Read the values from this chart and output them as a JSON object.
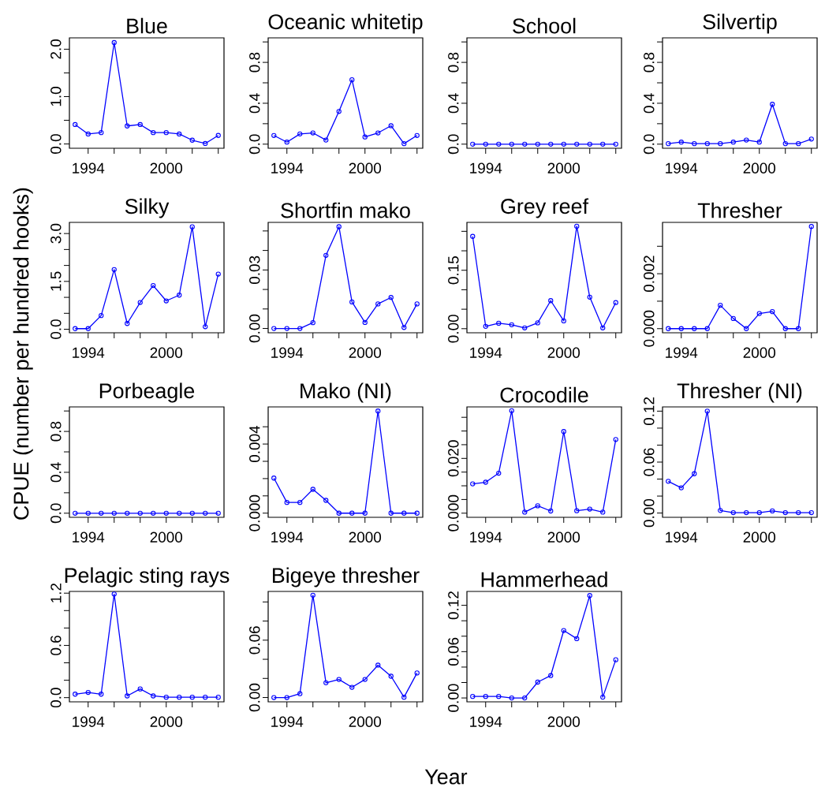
{
  "chart_data": [
    {
      "type": "line",
      "title": "Blue",
      "x": [
        1993,
        1994,
        1995,
        1996,
        1997,
        1998,
        1999,
        2000,
        2001,
        2002,
        2003,
        2004
      ],
      "values": [
        0.41,
        0.21,
        0.24,
        2.14,
        0.38,
        0.41,
        0.24,
        0.24,
        0.21,
        0.08,
        0.01,
        0.18
      ],
      "color": "#0000ff",
      "marker": "circle",
      "xlim": [
        1992.56,
        2004.44
      ],
      "xticks": [
        {
          "value": 1994,
          "label": "1994"
        },
        {
          "value": 1996,
          "label": null
        },
        {
          "value": 1998,
          "label": null
        },
        {
          "value": 2000,
          "label": "2000"
        },
        {
          "value": 2002,
          "label": null
        },
        {
          "value": 2004,
          "label": null
        }
      ],
      "ylim": [
        -0.09,
        2.24
      ],
      "yticks": [
        {
          "value": 0,
          "label": "0.0"
        },
        {
          "value": 0.5,
          "label": null
        },
        {
          "value": 1.0,
          "label": "1.0"
        },
        {
          "value": 1.5,
          "label": null
        },
        {
          "value": 2.0,
          "label": "2.0"
        }
      ]
    },
    {
      "type": "line",
      "title": "Oceanic whitetip",
      "x": [
        1993,
        1994,
        1995,
        1996,
        1997,
        1998,
        1999,
        2000,
        2001,
        2002,
        2003,
        2004
      ],
      "values": [
        0.085,
        0.02,
        0.1,
        0.11,
        0.04,
        0.32,
        0.63,
        0.07,
        0.11,
        0.18,
        0.005,
        0.085
      ],
      "color": "#0000ff",
      "marker": "circle",
      "xlim": [
        1992.56,
        2004.44
      ],
      "xticks": [
        {
          "value": 1994,
          "label": "1994"
        },
        {
          "value": 1996,
          "label": null
        },
        {
          "value": 1998,
          "label": null
        },
        {
          "value": 2000,
          "label": "2000"
        },
        {
          "value": 2002,
          "label": null
        },
        {
          "value": 2004,
          "label": null
        }
      ],
      "ylim": [
        -0.04,
        1.04
      ],
      "yticks": [
        {
          "value": 0,
          "label": "0.0"
        },
        {
          "value": 0.2,
          "label": null
        },
        {
          "value": 0.4,
          "label": "0.4"
        },
        {
          "value": 0.6,
          "label": null
        },
        {
          "value": 0.8,
          "label": "0.8"
        },
        {
          "value": 1.0,
          "label": null
        }
      ]
    },
    {
      "type": "line",
      "title": "School",
      "x": [
        1993,
        1994,
        1995,
        1996,
        1997,
        1998,
        1999,
        2000,
        2001,
        2002,
        2003,
        2004
      ],
      "values": [
        0,
        0,
        0,
        0,
        0,
        0,
        0,
        0,
        0,
        0,
        0,
        0
      ],
      "color": "#0000ff",
      "marker": "circle",
      "xlim": [
        1992.56,
        2004.44
      ],
      "xticks": [
        {
          "value": 1994,
          "label": "1994"
        },
        {
          "value": 1996,
          "label": null
        },
        {
          "value": 1998,
          "label": null
        },
        {
          "value": 2000,
          "label": "2000"
        },
        {
          "value": 2002,
          "label": null
        },
        {
          "value": 2004,
          "label": null
        }
      ],
      "ylim": [
        -0.04,
        1.04
      ],
      "yticks": [
        {
          "value": 0,
          "label": "0.0"
        },
        {
          "value": 0.2,
          "label": null
        },
        {
          "value": 0.4,
          "label": "0.4"
        },
        {
          "value": 0.6,
          "label": null
        },
        {
          "value": 0.8,
          "label": "0.8"
        },
        {
          "value": 1.0,
          "label": null
        }
      ]
    },
    {
      "type": "line",
      "title": "Silvertip",
      "x": [
        1993,
        1994,
        1995,
        1996,
        1997,
        1998,
        1999,
        2000,
        2001,
        2002,
        2003,
        2004
      ],
      "values": [
        0.005,
        0.02,
        0.005,
        0.005,
        0.005,
        0.02,
        0.04,
        0.02,
        0.39,
        0.005,
        0.005,
        0.05
      ],
      "color": "#0000ff",
      "marker": "circle",
      "xlim": [
        1992.56,
        2004.44
      ],
      "xticks": [
        {
          "value": 1994,
          "label": "1994"
        },
        {
          "value": 1996,
          "label": null
        },
        {
          "value": 1998,
          "label": null
        },
        {
          "value": 2000,
          "label": "2000"
        },
        {
          "value": 2002,
          "label": null
        },
        {
          "value": 2004,
          "label": null
        }
      ],
      "ylim": [
        -0.04,
        1.04
      ],
      "yticks": [
        {
          "value": 0,
          "label": "0.0"
        },
        {
          "value": 0.2,
          "label": null
        },
        {
          "value": 0.4,
          "label": "0.4"
        },
        {
          "value": 0.6,
          "label": null
        },
        {
          "value": 0.8,
          "label": "0.8"
        },
        {
          "value": 1.0,
          "label": null
        }
      ]
    },
    {
      "type": "line",
      "title": "Silky",
      "ylabel": "CPUE (number per hundred hooks)",
      "x": [
        1993,
        1994,
        1995,
        1996,
        1997,
        1998,
        1999,
        2000,
        2001,
        2002,
        2003,
        2004
      ],
      "values": [
        0.02,
        0.02,
        0.43,
        1.87,
        0.18,
        0.84,
        1.37,
        0.89,
        1.07,
        3.21,
        0.08,
        1.73
      ],
      "color": "#0000ff",
      "marker": "circle",
      "xlim": [
        1992.56,
        2004.44
      ],
      "xticks": [
        {
          "value": 1994,
          "label": "1994"
        },
        {
          "value": 1996,
          "label": null
        },
        {
          "value": 1998,
          "label": null
        },
        {
          "value": 2000,
          "label": "2000"
        },
        {
          "value": 2002,
          "label": null
        },
        {
          "value": 2004,
          "label": null
        }
      ],
      "ylim": [
        -0.11,
        3.35
      ],
      "yticks": [
        {
          "value": 0,
          "label": "0.0"
        },
        {
          "value": 0.5,
          "label": null
        },
        {
          "value": 1.0,
          "label": null
        },
        {
          "value": 1.5,
          "label": "1.5"
        },
        {
          "value": 2.0,
          "label": null
        },
        {
          "value": 2.5,
          "label": null
        },
        {
          "value": 3.0,
          "label": "3.0"
        }
      ]
    },
    {
      "type": "line",
      "title": "Shortfin mako",
      "x": [
        1993,
        1994,
        1995,
        1996,
        1997,
        1998,
        1999,
        2000,
        2001,
        2002,
        2003,
        2004
      ],
      "values": [
        0,
        0,
        0,
        0.003,
        0.0375,
        0.0522,
        0.0136,
        0.0031,
        0.0126,
        0.0159,
        0.0005,
        0.0126
      ],
      "color": "#0000ff",
      "marker": "circle",
      "xlim": [
        1992.56,
        2004.44
      ],
      "xticks": [
        {
          "value": 1994,
          "label": "1994"
        },
        {
          "value": 1996,
          "label": null
        },
        {
          "value": 1998,
          "label": null
        },
        {
          "value": 2000,
          "label": "2000"
        },
        {
          "value": 2002,
          "label": null
        },
        {
          "value": 2004,
          "label": null
        }
      ],
      "ylim": [
        -0.0022,
        0.0544
      ],
      "yticks": [
        {
          "value": 0,
          "label": "0.00"
        },
        {
          "value": 0.01,
          "label": null
        },
        {
          "value": 0.02,
          "label": null
        },
        {
          "value": 0.03,
          "label": "0.03"
        },
        {
          "value": 0.04,
          "label": null
        },
        {
          "value": 0.05,
          "label": null
        }
      ]
    },
    {
      "type": "line",
      "title": "Grey reef",
      "x": [
        1993,
        1994,
        1995,
        1996,
        1997,
        1998,
        1999,
        2000,
        2001,
        2002,
        2003,
        2004
      ],
      "values": [
        0.237,
        0.006,
        0.014,
        0.01,
        0.002,
        0.015,
        0.072,
        0.02,
        0.263,
        0.081,
        0.002,
        0.067
      ],
      "color": "#0000ff",
      "marker": "circle",
      "xlim": [
        1992.56,
        2004.44
      ],
      "xticks": [
        {
          "value": 1994,
          "label": "1994"
        },
        {
          "value": 1996,
          "label": null
        },
        {
          "value": 1998,
          "label": null
        },
        {
          "value": 2000,
          "label": "2000"
        },
        {
          "value": 2002,
          "label": null
        },
        {
          "value": 2004,
          "label": null
        }
      ],
      "ylim": [
        -0.0105,
        0.273
      ],
      "yticks": [
        {
          "value": 0,
          "label": "0.00"
        },
        {
          "value": 0.05,
          "label": null
        },
        {
          "value": 0.1,
          "label": null
        },
        {
          "value": 0.15,
          "label": "0.15"
        },
        {
          "value": 0.2,
          "label": null
        },
        {
          "value": 0.25,
          "label": null
        }
      ]
    },
    {
      "type": "line",
      "title": "Thresher",
      "x": [
        1993,
        1994,
        1995,
        1996,
        1997,
        1998,
        1999,
        2000,
        2001,
        2002,
        2003,
        2004
      ],
      "values": [
        0,
        0,
        0,
        0,
        0.00085,
        0.00037,
        0,
        0.00055,
        0.00062,
        0,
        0,
        0.00372
      ],
      "color": "#0000ff",
      "marker": "circle",
      "xlim": [
        1992.56,
        2004.44
      ],
      "xticks": [
        {
          "value": 1994,
          "label": "1994"
        },
        {
          "value": 1996,
          "label": null
        },
        {
          "value": 1998,
          "label": null
        },
        {
          "value": 2000,
          "label": "2000"
        },
        {
          "value": 2002,
          "label": null
        },
        {
          "value": 2004,
          "label": null
        }
      ],
      "ylim": [
        -0.00015,
        0.00387
      ],
      "yticks": [
        {
          "value": 0,
          "label": "0.000"
        },
        {
          "value": 0.001,
          "label": null
        },
        {
          "value": 0.002,
          "label": "0.002"
        },
        {
          "value": 0.003,
          "label": null
        }
      ]
    },
    {
      "type": "line",
      "title": "Porbeagle",
      "x": [
        1993,
        1994,
        1995,
        1996,
        1997,
        1998,
        1999,
        2000,
        2001,
        2002,
        2003,
        2004
      ],
      "values": [
        0,
        0,
        0,
        0,
        0,
        0,
        0,
        0,
        0,
        0,
        0,
        0
      ],
      "color": "#0000ff",
      "marker": "circle",
      "xlim": [
        1992.56,
        2004.44
      ],
      "xticks": [
        {
          "value": 1994,
          "label": "1994"
        },
        {
          "value": 1996,
          "label": null
        },
        {
          "value": 1998,
          "label": null
        },
        {
          "value": 2000,
          "label": "2000"
        },
        {
          "value": 2002,
          "label": null
        },
        {
          "value": 2004,
          "label": null
        }
      ],
      "ylim": [
        -0.04,
        1.04
      ],
      "yticks": [
        {
          "value": 0,
          "label": "0.0"
        },
        {
          "value": 0.2,
          "label": null
        },
        {
          "value": 0.4,
          "label": "0.4"
        },
        {
          "value": 0.6,
          "label": null
        },
        {
          "value": 0.8,
          "label": "0.8"
        },
        {
          "value": 1.0,
          "label": null
        }
      ]
    },
    {
      "type": "line",
      "title": "Mako (NI)",
      "x": [
        1993,
        1994,
        1995,
        1996,
        1997,
        1998,
        1999,
        2000,
        2001,
        2002,
        2003,
        2004
      ],
      "values": [
        0.00203,
        0.00062,
        0.00062,
        0.00138,
        0.00074,
        0,
        0,
        0,
        0.00591,
        0,
        0,
        0
      ],
      "color": "#0000ff",
      "marker": "circle",
      "xlim": [
        1992.56,
        2004.44
      ],
      "xticks": [
        {
          "value": 1994,
          "label": "1994"
        },
        {
          "value": 1996,
          "label": null
        },
        {
          "value": 1998,
          "label": null
        },
        {
          "value": 2000,
          "label": "2000"
        },
        {
          "value": 2002,
          "label": null
        },
        {
          "value": 2004,
          "label": null
        }
      ],
      "ylim": [
        -0.00024,
        0.00615
      ],
      "yticks": [
        {
          "value": 0,
          "label": "0.000"
        },
        {
          "value": 0.001,
          "label": null
        },
        {
          "value": 0.002,
          "label": null
        },
        {
          "value": 0.003,
          "label": null
        },
        {
          "value": 0.004,
          "label": "0.004"
        },
        {
          "value": 0.005,
          "label": null
        }
      ]
    },
    {
      "type": "line",
      "title": "Crocodile",
      "x": [
        1993,
        1994,
        1995,
        1996,
        1997,
        1998,
        1999,
        2000,
        2001,
        2002,
        2003,
        2004
      ],
      "values": [
        0.0107,
        0.0113,
        0.0146,
        0.0374,
        0.0004,
        0.0027,
        0.0008,
        0.0298,
        0.0009,
        0.0015,
        0.0004,
        0.0269
      ],
      "color": "#0000ff",
      "marker": "circle",
      "xlim": [
        1992.56,
        2004.44
      ],
      "xticks": [
        {
          "value": 1994,
          "label": "1994"
        },
        {
          "value": 1996,
          "label": null
        },
        {
          "value": 1998,
          "label": null
        },
        {
          "value": 2000,
          "label": "2000"
        },
        {
          "value": 2002,
          "label": null
        },
        {
          "value": 2004,
          "label": null
        }
      ],
      "ylim": [
        -0.0015,
        0.0388
      ],
      "yticks": [
        {
          "value": 0,
          "label": "0.000"
        },
        {
          "value": 0.005,
          "label": null
        },
        {
          "value": 0.01,
          "label": null
        },
        {
          "value": 0.015,
          "label": null
        },
        {
          "value": 0.02,
          "label": "0.020"
        },
        {
          "value": 0.025,
          "label": null
        },
        {
          "value": 0.03,
          "label": null
        },
        {
          "value": 0.035,
          "label": null
        }
      ]
    },
    {
      "type": "line",
      "title": "Thresher (NI)",
      "x": [
        1993,
        1994,
        1995,
        1996,
        1997,
        1998,
        1999,
        2000,
        2001,
        2002,
        2003,
        2004
      ],
      "values": [
        0.0374,
        0.0297,
        0.0463,
        0.12,
        0.003,
        0.0005,
        0.0005,
        0.0005,
        0.0025,
        0.0005,
        0.0005,
        0.0005
      ],
      "color": "#0000ff",
      "marker": "circle",
      "xlim": [
        1992.56,
        2004.44
      ],
      "xticks": [
        {
          "value": 1994,
          "label": "1994"
        },
        {
          "value": 1996,
          "label": null
        },
        {
          "value": 1998,
          "label": null
        },
        {
          "value": 2000,
          "label": "2000"
        },
        {
          "value": 2002,
          "label": null
        },
        {
          "value": 2004,
          "label": null
        }
      ],
      "ylim": [
        -0.005,
        0.125
      ],
      "yticks": [
        {
          "value": 0,
          "label": "0.00"
        },
        {
          "value": 0.02,
          "label": null
        },
        {
          "value": 0.04,
          "label": null
        },
        {
          "value": 0.06,
          "label": "0.06"
        },
        {
          "value": 0.08,
          "label": null
        },
        {
          "value": 0.1,
          "label": null
        },
        {
          "value": 0.12,
          "label": "0.12"
        }
      ]
    },
    {
      "type": "line",
      "title": "Pelagic sting rays",
      "x": [
        1993,
        1994,
        1995,
        1996,
        1997,
        1998,
        1999,
        2000,
        2001,
        2002,
        2003,
        2004
      ],
      "values": [
        0.04,
        0.06,
        0.04,
        1.19,
        0.02,
        0.1,
        0.02,
        0.005,
        0.005,
        0.005,
        0.005,
        0.005
      ],
      "color": "#0000ff",
      "marker": "circle",
      "xlim": [
        1992.56,
        2004.44
      ],
      "xticks": [
        {
          "value": 1994,
          "label": "1994"
        },
        {
          "value": 1996,
          "label": null
        },
        {
          "value": 1998,
          "label": null
        },
        {
          "value": 2000,
          "label": "2000"
        },
        {
          "value": 2002,
          "label": null
        },
        {
          "value": 2004,
          "label": null
        }
      ],
      "ylim": [
        -0.048,
        1.22
      ],
      "yticks": [
        {
          "value": 0,
          "label": "0.0"
        },
        {
          "value": 0.2,
          "label": null
        },
        {
          "value": 0.4,
          "label": null
        },
        {
          "value": 0.6,
          "label": "0.6"
        },
        {
          "value": 0.8,
          "label": null
        },
        {
          "value": 1.0,
          "label": null
        },
        {
          "value": 1.2,
          "label": "1.2"
        }
      ]
    },
    {
      "type": "line",
      "title": "Bigeye thresher",
      "xlabel": "Year",
      "x": [
        1993,
        1994,
        1995,
        1996,
        1997,
        1998,
        1999,
        2000,
        2001,
        2002,
        2003,
        2004
      ],
      "values": [
        0,
        0,
        0.004,
        0.107,
        0.0154,
        0.0189,
        0.0107,
        0.0189,
        0.0339,
        0.0223,
        0.0003,
        0.0257
      ],
      "color": "#0000ff",
      "marker": "circle",
      "xlim": [
        1992.56,
        2004.44
      ],
      "xticks": [
        {
          "value": 1994,
          "label": "1994"
        },
        {
          "value": 1996,
          "label": null
        },
        {
          "value": 1998,
          "label": null
        },
        {
          "value": 2000,
          "label": "2000"
        },
        {
          "value": 2002,
          "label": null
        },
        {
          "value": 2004,
          "label": null
        }
      ],
      "ylim": [
        -0.0045,
        0.111
      ],
      "yticks": [
        {
          "value": 0,
          "label": "0.00"
        },
        {
          "value": 0.02,
          "label": null
        },
        {
          "value": 0.04,
          "label": null
        },
        {
          "value": 0.06,
          "label": "0.06"
        },
        {
          "value": 0.08,
          "label": null
        },
        {
          "value": 0.1,
          "label": null
        }
      ]
    },
    {
      "type": "line",
      "title": "Hammerhead",
      "x": [
        1993,
        1994,
        1995,
        1996,
        1997,
        1998,
        1999,
        2000,
        2001,
        2002,
        2003,
        2004
      ],
      "values": [
        0.002,
        0.002,
        0.002,
        0,
        0,
        0.0205,
        0.029,
        0.0874,
        0.0768,
        0.1326,
        0.001,
        0.0495
      ],
      "color": "#0000ff",
      "marker": "circle",
      "xlim": [
        1992.56,
        2004.44
      ],
      "xticks": [
        {
          "value": 1994,
          "label": "1994"
        },
        {
          "value": 1996,
          "label": null
        },
        {
          "value": 1998,
          "label": null
        },
        {
          "value": 2000,
          "label": "2000"
        },
        {
          "value": 2002,
          "label": null
        },
        {
          "value": 2004,
          "label": null
        }
      ],
      "ylim": [
        -0.005,
        0.138
      ],
      "yticks": [
        {
          "value": 0,
          "label": "0.00"
        },
        {
          "value": 0.02,
          "label": null
        },
        {
          "value": 0.04,
          "label": null
        },
        {
          "value": 0.06,
          "label": "0.06"
        },
        {
          "value": 0.08,
          "label": null
        },
        {
          "value": 0.1,
          "label": null
        },
        {
          "value": 0.12,
          "label": "0.12"
        }
      ]
    }
  ]
}
